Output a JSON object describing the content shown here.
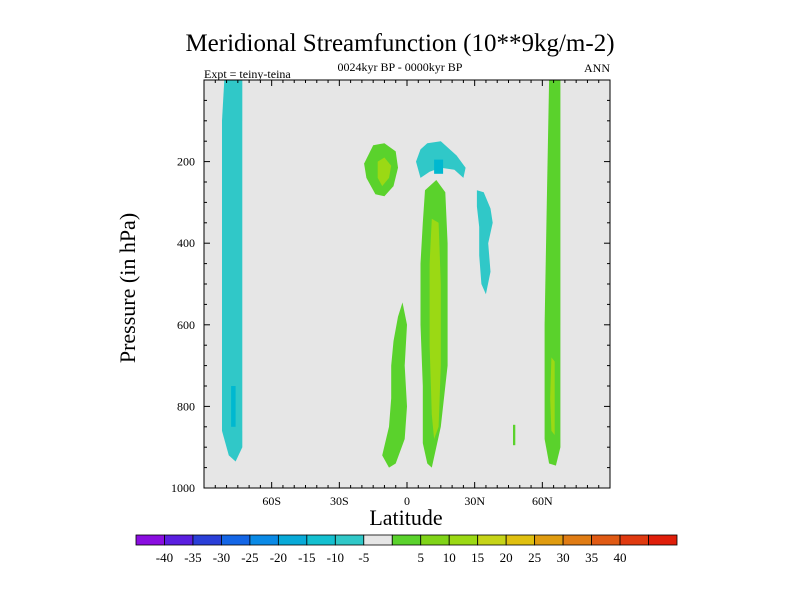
{
  "chart_data": {
    "type": "contour",
    "title": "Meridional Streamfunction (10**9kg/m-2)",
    "subtitle": "0024kyr BP - 0000kyr BP",
    "left_label": "Expt = teiny-teina",
    "right_label": "ANN",
    "xlabel": "Latitude",
    "ylabel": "Pressure (in hPa)",
    "xlim": [
      -90,
      90
    ],
    "ylim": [
      1000,
      0
    ],
    "x_ticks": [
      {
        "value": -60,
        "label": "60S"
      },
      {
        "value": -30,
        "label": "30S"
      },
      {
        "value": 0,
        "label": "0"
      },
      {
        "value": 30,
        "label": "30N"
      },
      {
        "value": 60,
        "label": "60N"
      }
    ],
    "y_ticks": [
      {
        "value": 200,
        "label": "200"
      },
      {
        "value": 400,
        "label": "400"
      },
      {
        "value": 600,
        "label": "600"
      },
      {
        "value": 800,
        "label": "800"
      },
      {
        "value": 1000,
        "label": "1000"
      }
    ],
    "background_color": "#e6e6e6",
    "regions": [
      {
        "name": "sh-polar-cell",
        "color": "#30c8c8",
        "points": [
          [
            -81,
            0
          ],
          [
            -73,
            0
          ],
          [
            -73,
            900
          ],
          [
            -76,
            935
          ],
          [
            -79,
            920
          ],
          [
            -82,
            860
          ],
          [
            -82,
            100
          ]
        ]
      },
      {
        "name": "sh-polar-core",
        "color": "#00b8d0",
        "points": [
          [
            -78,
            750
          ],
          [
            -76,
            750
          ],
          [
            -76,
            850
          ],
          [
            -78,
            850
          ]
        ]
      },
      {
        "name": "nh-polar-cell",
        "color": "#5ad22c",
        "points": [
          [
            63,
            0
          ],
          [
            68,
            0
          ],
          [
            68,
            900
          ],
          [
            66,
            945
          ],
          [
            63,
            940
          ],
          [
            61,
            880
          ],
          [
            61,
            600
          ],
          [
            62,
            300
          ]
        ]
      },
      {
        "name": "nh-polar-core",
        "color": "#9bd914",
        "points": [
          [
            64,
            680
          ],
          [
            65.5,
            690
          ],
          [
            65.5,
            870
          ],
          [
            64,
            860
          ],
          [
            63.5,
            780
          ]
        ]
      },
      {
        "name": "upper-sh-green",
        "color": "#5ad22c",
        "points": [
          [
            -15,
            160
          ],
          [
            -10,
            155
          ],
          [
            -5,
            175
          ],
          [
            -4,
            215
          ],
          [
            -6,
            260
          ],
          [
            -10,
            285
          ],
          [
            -14,
            280
          ],
          [
            -18,
            240
          ],
          [
            -19,
            205
          ]
        ]
      },
      {
        "name": "upper-sh-core",
        "color": "#9bd914",
        "points": [
          [
            -13,
            200
          ],
          [
            -10,
            190
          ],
          [
            -7,
            210
          ],
          [
            -8,
            240
          ],
          [
            -11,
            260
          ],
          [
            -13,
            240
          ]
        ]
      },
      {
        "name": "upper-nh-cyan",
        "color": "#30c8c8",
        "points": [
          [
            9,
            155
          ],
          [
            15,
            150
          ],
          [
            22,
            185
          ],
          [
            26,
            215
          ],
          [
            25,
            240
          ],
          [
            21,
            220
          ],
          [
            15,
            215
          ],
          [
            10,
            225
          ],
          [
            6,
            240
          ],
          [
            4,
            200
          ],
          [
            6,
            170
          ]
        ]
      },
      {
        "name": "upper-nh-core",
        "color": "#00b8d0",
        "points": [
          [
            12,
            195
          ],
          [
            16,
            195
          ],
          [
            16,
            230
          ],
          [
            12,
            230
          ]
        ]
      },
      {
        "name": "cyan-wisp",
        "color": "#30c8c8",
        "points": [
          [
            31,
            270
          ],
          [
            34,
            275
          ],
          [
            37,
            315
          ],
          [
            38,
            350
          ],
          [
            36,
            400
          ],
          [
            37,
            470
          ],
          [
            35,
            525
          ],
          [
            33,
            500
          ],
          [
            32,
            430
          ],
          [
            32,
            360
          ],
          [
            31,
            310
          ]
        ]
      },
      {
        "name": "lower-sh-green",
        "color": "#5ad22c",
        "points": [
          [
            -2,
            545
          ],
          [
            -4,
            580
          ],
          [
            -6,
            640
          ],
          [
            -7,
            700
          ],
          [
            -7,
            780
          ],
          [
            -8,
            850
          ],
          [
            -11,
            920
          ],
          [
            -8,
            950
          ],
          [
            -5,
            940
          ],
          [
            -1,
            880
          ],
          [
            0,
            800
          ],
          [
            -1,
            700
          ],
          [
            0,
            600
          ]
        ]
      },
      {
        "name": "lower-nh-green",
        "color": "#5ad22c",
        "points": [
          [
            8,
            270
          ],
          [
            13,
            245
          ],
          [
            17,
            275
          ],
          [
            18,
            400
          ],
          [
            18,
            600
          ],
          [
            18,
            700
          ],
          [
            15,
            850
          ],
          [
            11,
            950
          ],
          [
            9,
            940
          ],
          [
            7,
            890
          ],
          [
            7,
            750
          ],
          [
            6,
            600
          ],
          [
            6,
            450
          ],
          [
            7,
            350
          ]
        ]
      },
      {
        "name": "lower-nh-core",
        "color": "#9bd914",
        "points": [
          [
            11,
            340
          ],
          [
            14,
            350
          ],
          [
            15,
            500
          ],
          [
            15,
            700
          ],
          [
            14,
            850
          ],
          [
            12,
            880
          ],
          [
            11,
            820
          ],
          [
            10,
            650
          ],
          [
            10,
            450
          ]
        ]
      },
      {
        "name": "nh-speck",
        "color": "#5ad22c",
        "points": [
          [
            47,
            845
          ],
          [
            48,
            845
          ],
          [
            48,
            895
          ],
          [
            47,
            895
          ]
        ]
      }
    ],
    "colorbar": {
      "colors": [
        "#8a0ee0",
        "#5a1ee0",
        "#2a3fd8",
        "#1466e6",
        "#0a8ae6",
        "#08aad8",
        "#14c0d0",
        "#30c8c8",
        "#e6e6e6",
        "#5ad22c",
        "#80d418",
        "#9bd914",
        "#c6d418",
        "#e0c010",
        "#e09c10",
        "#e07c14",
        "#e05a14",
        "#e03a10",
        "#e01e0a"
      ],
      "labels": [
        "-40",
        "-35",
        "-30",
        "-25",
        "-20",
        "-15",
        "-10",
        "-5",
        "5",
        "10",
        "15",
        "20",
        "25",
        "30",
        "35",
        "40"
      ]
    }
  }
}
